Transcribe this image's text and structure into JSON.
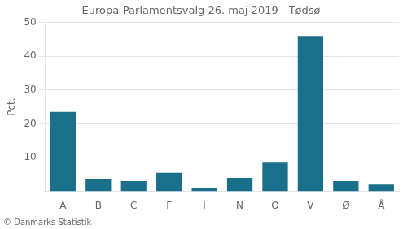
{
  "chart_data": {
    "type": "bar",
    "title": "Europa-Parlamentsvalg 26. maj 2019 - Tødsø",
    "categories": [
      "A",
      "B",
      "C",
      "F",
      "I",
      "N",
      "O",
      "V",
      "Ø",
      "Å"
    ],
    "values": [
      23.5,
      3.5,
      3.0,
      5.5,
      1.0,
      4.0,
      8.5,
      46.0,
      3.0,
      2.0
    ],
    "color": "#1a6f8a",
    "ylabel": "Pct.",
    "footer": "© Danmarks Statistik",
    "ylim": [
      0,
      50
    ],
    "yticks": [
      10,
      20,
      30,
      40,
      50
    ],
    "grid": true
  }
}
